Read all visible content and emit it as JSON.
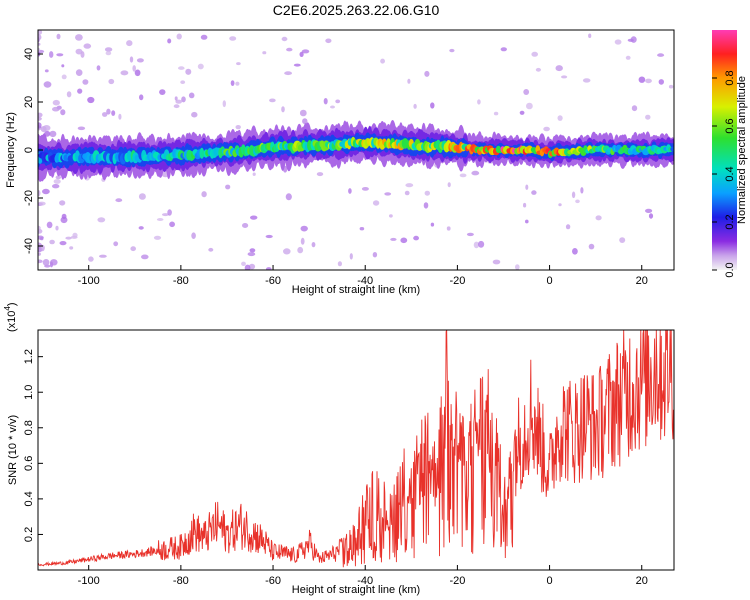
{
  "title": "C2E6.2025.263.22.06.G10",
  "chart_data": [
    {
      "type": "heatmap",
      "xlabel": "Height of straight line (km)",
      "ylabel": "Frequency (Hz)",
      "xlim": [
        -111,
        27
      ],
      "ylim": [
        -50,
        50
      ],
      "xticks": [
        -100,
        -80,
        -60,
        -40,
        -20,
        0,
        20
      ],
      "yticks": [
        -40,
        -20,
        0,
        20,
        40
      ],
      "colorbar": {
        "label": "Normalized spectral amplitude",
        "range": [
          0,
          1
        ],
        "ticks": [
          0.0,
          0.2,
          0.4,
          0.6,
          0.8
        ]
      },
      "ridge": {
        "x": [
          -110,
          -100,
          -90,
          -80,
          -70,
          -60,
          -50,
          -40,
          -30,
          -20,
          -15,
          -10,
          -5,
          0,
          10,
          20,
          27
        ],
        "center_freq": [
          -3,
          -3,
          -3,
          -2,
          -1,
          1,
          2,
          3,
          2,
          1,
          0,
          0,
          0,
          -1,
          0,
          0,
          0
        ],
        "amplitude": [
          0.35,
          0.4,
          0.45,
          0.5,
          0.55,
          0.6,
          0.65,
          0.7,
          0.75,
          0.8,
          0.9,
          0.95,
          0.95,
          0.9,
          0.6,
          0.5,
          0.45
        ]
      }
    },
    {
      "type": "line",
      "xlabel": "Height of straight line (km)",
      "ylabel": "SNR (10 * v/v)",
      "y_multiplier": "(x10",
      "y_multiplier_exp": "4",
      "xlim": [
        -111,
        27
      ],
      "ylim": [
        0,
        13500
      ],
      "xticks": [
        -100,
        -80,
        -60,
        -40,
        -20,
        0,
        20
      ],
      "yticks": [
        2000,
        4000,
        6000,
        8000,
        10000,
        12000
      ],
      "ytick_labels": [
        "0.2",
        "0.4",
        "0.6",
        "0.8",
        "1.0",
        "1.2"
      ],
      "color": "#e8312a",
      "series": [
        {
          "x": [
            -111,
            -105,
            -100,
            -95,
            -90,
            -85,
            -80,
            -77,
            -75,
            -72,
            -70,
            -67,
            -65,
            -62,
            -60,
            -57,
            -55,
            -52,
            -50,
            -47,
            -45,
            -42,
            -40,
            -37,
            -35,
            -32,
            -30,
            -27,
            -25,
            -23,
            -22,
            -21,
            -20,
            -18,
            -16,
            -14,
            -12,
            -10,
            -8,
            -6,
            -4,
            -2,
            0,
            2,
            5,
            8,
            10,
            13,
            15,
            18,
            20,
            23,
            25,
            27
          ],
          "y": [
            300,
            400,
            600,
            800,
            900,
            1100,
            1300,
            2200,
            1800,
            2600,
            2000,
            2500,
            2200,
            1600,
            1000,
            900,
            800,
            1500,
            600,
            900,
            1200,
            1800,
            3500,
            4500,
            3000,
            5200,
            4500,
            6800,
            5400,
            7800,
            13500,
            9000,
            7000,
            6000,
            7800,
            8600,
            7200,
            4000,
            6600,
            7500,
            9000,
            7200,
            5500,
            8200,
            7800,
            8400,
            8000,
            9000,
            9600,
            10400,
            10800,
            11600,
            11400,
            12000
          ]
        }
      ]
    }
  ]
}
